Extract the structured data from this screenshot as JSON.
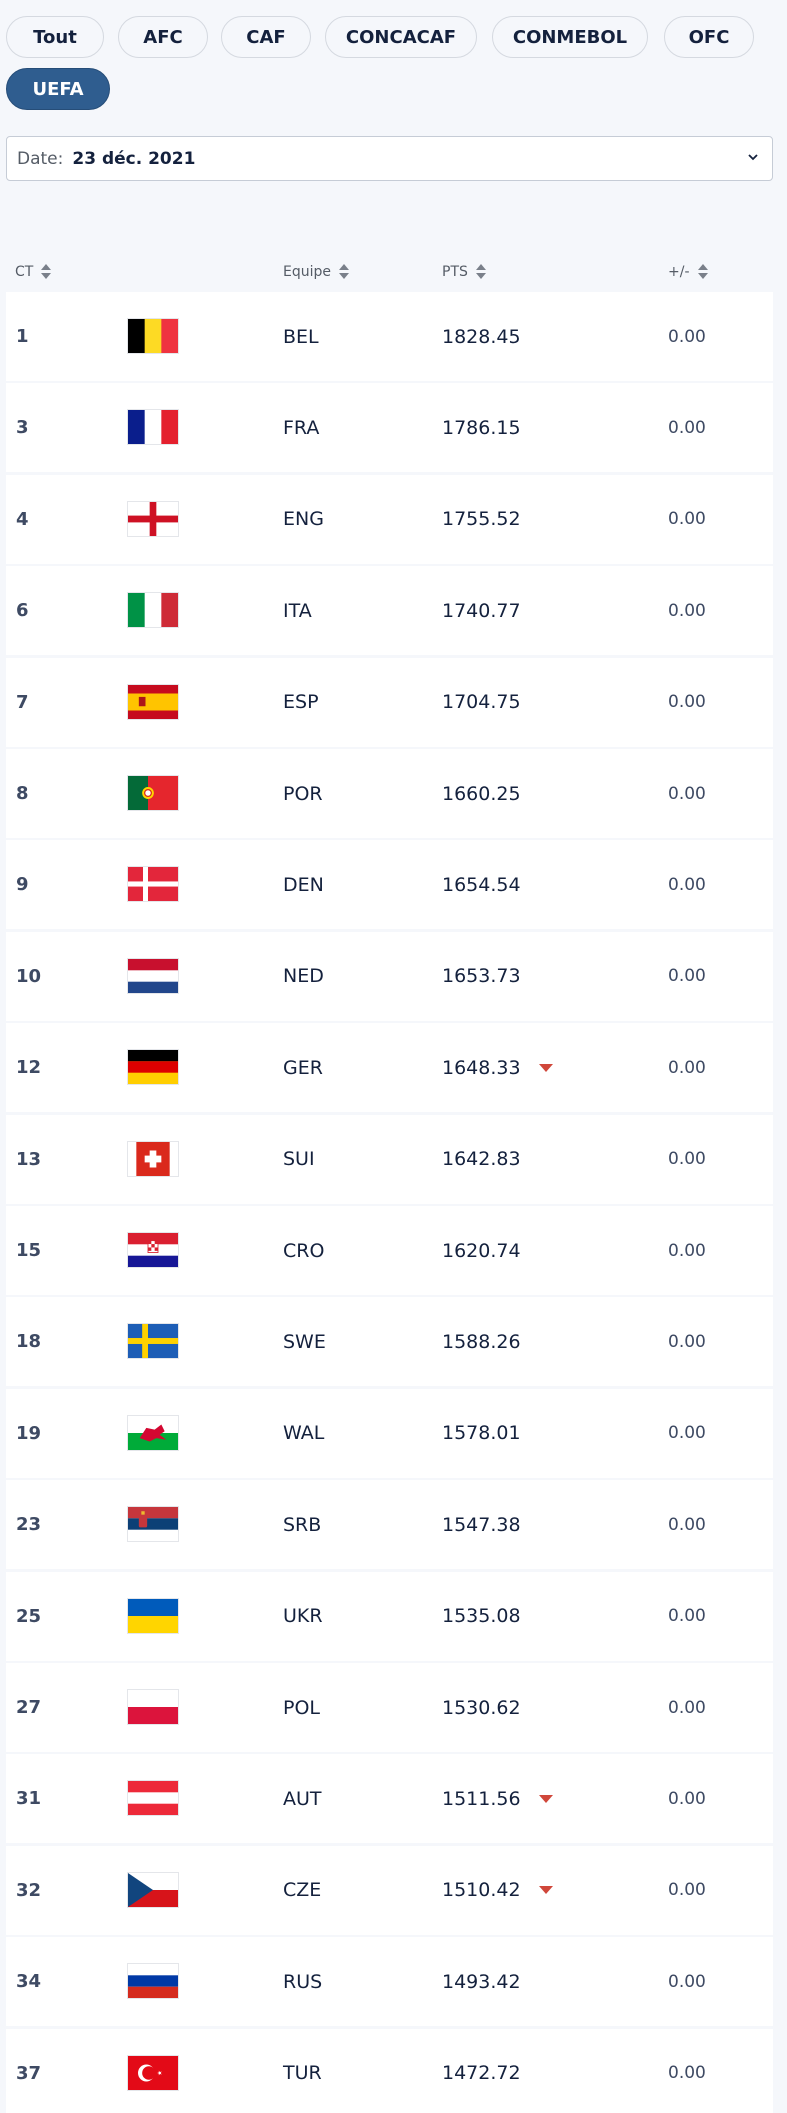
{
  "filters": [
    {
      "label": "Tout",
      "active": false
    },
    {
      "label": "AFC",
      "active": false
    },
    {
      "label": "CAF",
      "active": false
    },
    {
      "label": "CONCACAF",
      "active": false
    },
    {
      "label": "CONMEBOL",
      "active": false
    },
    {
      "label": "OFC",
      "active": false
    },
    {
      "label": "UEFA",
      "active": true
    }
  ],
  "date_filter": {
    "label": "Date:",
    "value": "23 déc. 2021",
    "icon": "chevron-down-icon"
  },
  "table": {
    "columns": {
      "rank": "CT",
      "team": "Equipe",
      "points": "PTS",
      "change": "+/-"
    },
    "rows": [
      {
        "rank": "1",
        "flag": "BEL",
        "team": "BEL",
        "points": "1828.45",
        "trend": "",
        "change": "0.00"
      },
      {
        "rank": "3",
        "flag": "FRA",
        "team": "FRA",
        "points": "1786.15",
        "trend": "",
        "change": "0.00"
      },
      {
        "rank": "4",
        "flag": "ENG",
        "team": "ENG",
        "points": "1755.52",
        "trend": "",
        "change": "0.00"
      },
      {
        "rank": "6",
        "flag": "ITA",
        "team": "ITA",
        "points": "1740.77",
        "trend": "",
        "change": "0.00"
      },
      {
        "rank": "7",
        "flag": "ESP",
        "team": "ESP",
        "points": "1704.75",
        "trend": "",
        "change": "0.00"
      },
      {
        "rank": "8",
        "flag": "POR",
        "team": "POR",
        "points": "1660.25",
        "trend": "",
        "change": "0.00"
      },
      {
        "rank": "9",
        "flag": "DEN",
        "team": "DEN",
        "points": "1654.54",
        "trend": "",
        "change": "0.00"
      },
      {
        "rank": "10",
        "flag": "NED",
        "team": "NED",
        "points": "1653.73",
        "trend": "",
        "change": "0.00"
      },
      {
        "rank": "12",
        "flag": "GER",
        "team": "GER",
        "points": "1648.33",
        "trend": "down",
        "change": "0.00"
      },
      {
        "rank": "13",
        "flag": "SUI",
        "team": "SUI",
        "points": "1642.83",
        "trend": "",
        "change": "0.00"
      },
      {
        "rank": "15",
        "flag": "CRO",
        "team": "CRO",
        "points": "1620.74",
        "trend": "",
        "change": "0.00"
      },
      {
        "rank": "18",
        "flag": "SWE",
        "team": "SWE",
        "points": "1588.26",
        "trend": "",
        "change": "0.00"
      },
      {
        "rank": "19",
        "flag": "WAL",
        "team": "WAL",
        "points": "1578.01",
        "trend": "",
        "change": "0.00"
      },
      {
        "rank": "23",
        "flag": "SRB",
        "team": "SRB",
        "points": "1547.38",
        "trend": "",
        "change": "0.00"
      },
      {
        "rank": "25",
        "flag": "UKR",
        "team": "UKR",
        "points": "1535.08",
        "trend": "",
        "change": "0.00"
      },
      {
        "rank": "27",
        "flag": "POL",
        "team": "POL",
        "points": "1530.62",
        "trend": "",
        "change": "0.00"
      },
      {
        "rank": "31",
        "flag": "AUT",
        "team": "AUT",
        "points": "1511.56",
        "trend": "down",
        "change": "0.00"
      },
      {
        "rank": "32",
        "flag": "CZE",
        "team": "CZE",
        "points": "1510.42",
        "trend": "down",
        "change": "0.00"
      },
      {
        "rank": "34",
        "flag": "RUS",
        "team": "RUS",
        "points": "1493.42",
        "trend": "",
        "change": "0.00"
      },
      {
        "rank": "37",
        "flag": "TUR",
        "team": "TUR",
        "points": "1472.72",
        "trend": "",
        "change": "0.00"
      }
    ]
  },
  "colors": {
    "active_pill": "#2f5d8f",
    "trend_down": "#d0473a"
  }
}
